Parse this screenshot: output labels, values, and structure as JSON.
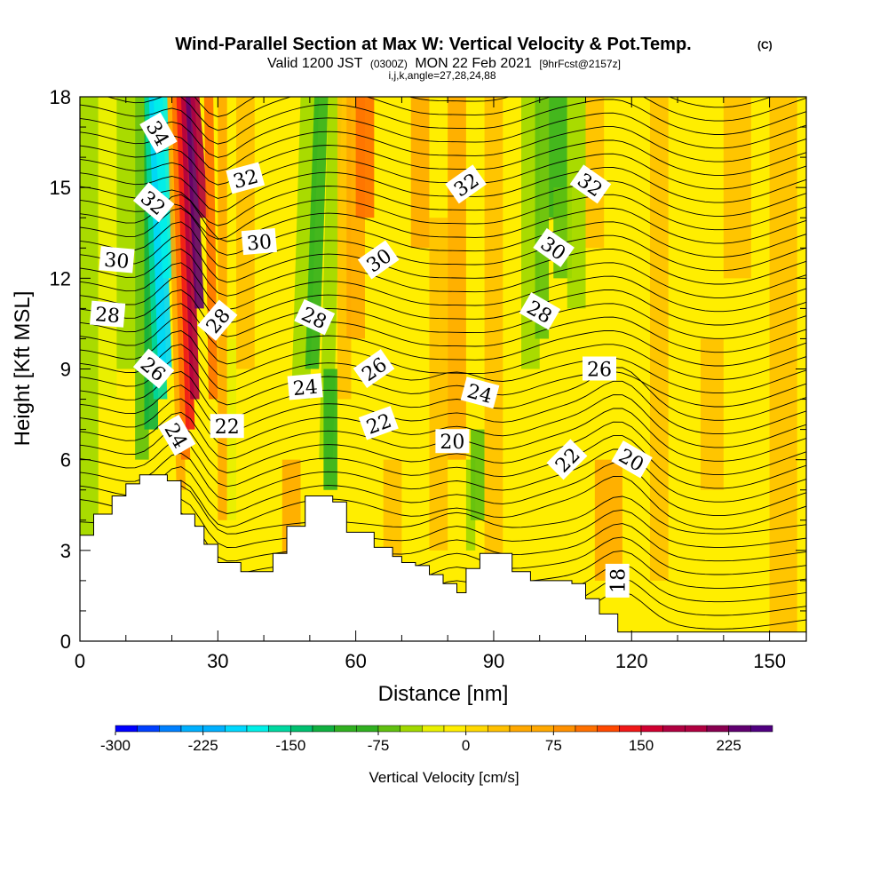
{
  "chart_data": {
    "type": "heatmap",
    "title": "Wind-Parallel Section at Max W: Vertical Velocity & Pot.Temp.",
    "title_mark": "(C)",
    "subtitle_parts": [
      "Valid 1200 JST",
      "(0300Z)",
      "MON 22 Feb 2021",
      "[9hrFcst@2157z]"
    ],
    "subtitle2": "i,j,k,angle=27,28,24,88",
    "xlabel": "Distance [nm]",
    "ylabel": "Height [Kft MSL]",
    "xlim": [
      0,
      158
    ],
    "ylim": [
      0,
      18
    ],
    "xticks": [
      0,
      30,
      60,
      90,
      120,
      150
    ],
    "yticks": [
      0,
      3,
      6,
      9,
      12,
      15,
      18
    ],
    "colorbar": {
      "label": "Vertical Velocity [cm/s]",
      "ticks": [
        -300,
        -225,
        -150,
        -75,
        0,
        75,
        150,
        225
      ],
      "range": [
        -300,
        262.5
      ],
      "step": 18.75,
      "colors": [
        "#0000ff",
        "#0040ff",
        "#0080ff",
        "#00b0ff",
        "#00d8ff",
        "#00f0e8",
        "#00d8a0",
        "#00c070",
        "#10b040",
        "#30b020",
        "#60c010",
        "#a0d800",
        "#e8f000",
        "#ffee00",
        "#ffd800",
        "#ffc000",
        "#ffa800",
        "#ff9000",
        "#ff7000",
        "#ff4800",
        "#f01818",
        "#d00030",
        "#b00040",
        "#880050",
        "#600070",
        "#500080"
      ]
    },
    "isentropes_label": "Potential temperature contours",
    "contour_labels": [
      {
        "x": 17,
        "y": 16.8,
        "text": "34",
        "rot": 60
      },
      {
        "x": 16,
        "y": 14.5,
        "text": "32",
        "rot": 40
      },
      {
        "x": 36,
        "y": 15.3,
        "text": "32",
        "rot": -15
      },
      {
        "x": 84,
        "y": 15.1,
        "text": "32",
        "rot": -35
      },
      {
        "x": 111,
        "y": 15.1,
        "text": "32",
        "rot": 35
      },
      {
        "x": 8,
        "y": 12.6,
        "text": "30",
        "rot": 5
      },
      {
        "x": 39,
        "y": 13.2,
        "text": "30",
        "rot": -5
      },
      {
        "x": 65,
        "y": 12.6,
        "text": "30",
        "rot": -35
      },
      {
        "x": 103,
        "y": 13.0,
        "text": "30",
        "rot": 35
      },
      {
        "x": 6,
        "y": 10.8,
        "text": "28",
        "rot": 5
      },
      {
        "x": 30,
        "y": 10.6,
        "text": "28",
        "rot": -50
      },
      {
        "x": 51,
        "y": 10.7,
        "text": "28",
        "rot": 25
      },
      {
        "x": 100,
        "y": 10.9,
        "text": "28",
        "rot": 30
      },
      {
        "x": 16,
        "y": 9.0,
        "text": "26",
        "rot": 40
      },
      {
        "x": 64,
        "y": 9.0,
        "text": "26",
        "rot": -35
      },
      {
        "x": 113,
        "y": 9.0,
        "text": "26",
        "rot": 0
      },
      {
        "x": 49,
        "y": 8.4,
        "text": "24",
        "rot": -5
      },
      {
        "x": 87,
        "y": 8.2,
        "text": "24",
        "rot": 15
      },
      {
        "x": 21,
        "y": 6.8,
        "text": "24",
        "rot": 60
      },
      {
        "x": 32,
        "y": 7.1,
        "text": "22",
        "rot": 0
      },
      {
        "x": 65,
        "y": 7.2,
        "text": "22",
        "rot": -20
      },
      {
        "x": 106,
        "y": 6.0,
        "text": "22",
        "rot": -45
      },
      {
        "x": 81,
        "y": 6.6,
        "text": "20",
        "rot": 0
      },
      {
        "x": 120,
        "y": 6.0,
        "text": "20",
        "rot": 30
      },
      {
        "x": 117,
        "y": 2.0,
        "text": "18",
        "rot": -90
      }
    ],
    "terrain_height": [
      [
        0,
        3.5
      ],
      [
        3,
        4.2
      ],
      [
        7,
        4.8
      ],
      [
        10,
        5.2
      ],
      [
        13,
        5.5
      ],
      [
        19,
        5.3
      ],
      [
        22,
        4.2
      ],
      [
        25,
        3.8
      ],
      [
        27,
        3.2
      ],
      [
        30,
        2.6
      ],
      [
        35,
        2.3
      ],
      [
        42,
        2.9
      ],
      [
        45,
        3.8
      ],
      [
        49,
        4.8
      ],
      [
        55,
        4.6
      ],
      [
        58,
        3.6
      ],
      [
        64,
        3.1
      ],
      [
        68,
        2.8
      ],
      [
        70,
        2.6
      ],
      [
        73,
        2.5
      ],
      [
        76,
        2.2
      ],
      [
        79,
        1.9
      ],
      [
        82,
        1.6
      ],
      [
        84,
        2.4
      ],
      [
        87,
        2.9
      ],
      [
        94,
        2.3
      ],
      [
        98,
        2.0
      ],
      [
        107,
        1.9
      ],
      [
        110,
        1.4
      ],
      [
        113,
        0.9
      ],
      [
        117,
        0.3
      ],
      [
        158,
        0.3
      ]
    ],
    "updraft_core": {
      "x": 26,
      "peak_cm_s": 260
    }
  }
}
